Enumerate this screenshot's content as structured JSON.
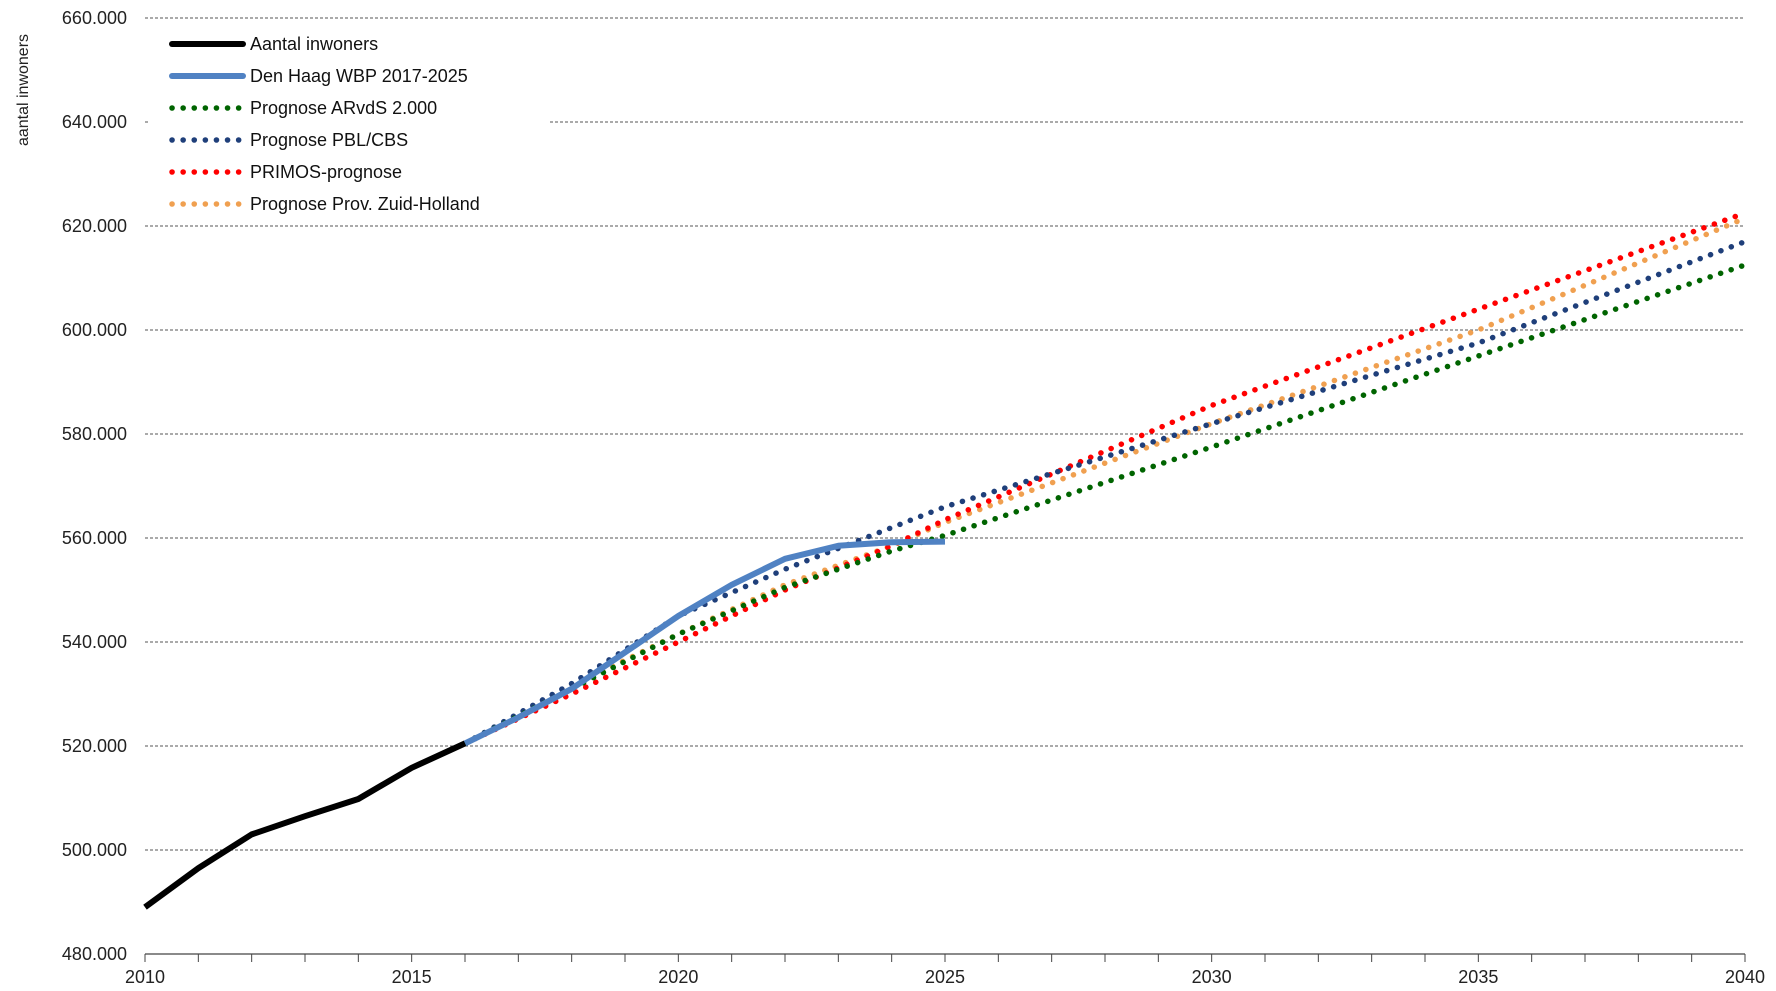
{
  "chart_data": {
    "type": "line",
    "title": "",
    "xlabel": "",
    "ylabel": "aantal inwoners",
    "xlim": [
      2010,
      2040
    ],
    "ylim": [
      480000,
      660000
    ],
    "x_ticks": [
      "2010",
      "2015",
      "2020",
      "2025",
      "2030",
      "2035",
      "2040"
    ],
    "y_ticks": [
      "480.000",
      "500.000",
      "520.000",
      "540.000",
      "560.000",
      "580.000",
      "600.000",
      "620.000",
      "640.000",
      "660.000"
    ],
    "grid": "horizontal dashed",
    "legend_position": "top-left",
    "series": [
      {
        "name": "Aantal inwoners",
        "style": "solid",
        "color": "#000000",
        "x": [
          2010,
          2011,
          2012,
          2013,
          2014,
          2015,
          2016
        ],
        "y": [
          489000,
          496500,
          503000,
          506500,
          509800,
          515800,
          520500
        ]
      },
      {
        "name": "Den Haag WBP 2017-2025",
        "style": "solid",
        "color": "#5082c3",
        "x": [
          2016,
          2017,
          2018,
          2019,
          2020,
          2021,
          2022,
          2023,
          2024,
          2025
        ],
        "y": [
          520500,
          525500,
          531000,
          538000,
          545000,
          551000,
          556000,
          558500,
          559200,
          559300
        ]
      },
      {
        "name": "Prognose ARvdS 2.000",
        "style": "dotted",
        "color": "#006400",
        "x": [
          2016,
          2018,
          2020,
          2022,
          2024,
          2025,
          2030,
          2035,
          2040
        ],
        "y": [
          520500,
          531000,
          541500,
          550500,
          557500,
          560500,
          577500,
          595000,
          612500
        ]
      },
      {
        "name": "Prognose PBL/CBS",
        "style": "dotted",
        "color": "#1f3f7a",
        "x": [
          2016,
          2018,
          2020,
          2022,
          2024,
          2025,
          2030,
          2035,
          2040
        ],
        "y": [
          520500,
          532000,
          545000,
          554000,
          562000,
          566000,
          582000,
          597500,
          617000
        ]
      },
      {
        "name": "PRIMOS-prognose",
        "style": "dotted",
        "color": "#ff0000",
        "x": [
          2016,
          2018,
          2020,
          2022,
          2024,
          2025,
          2030,
          2035,
          2040
        ],
        "y": [
          520500,
          530000,
          540000,
          550000,
          558500,
          563500,
          585500,
          604000,
          622500
        ]
      },
      {
        "name": "Prognose Prov. Zuid-Holland",
        "style": "dotted",
        "color": "#f0a050",
        "x": [
          2016,
          2018,
          2020,
          2022,
          2024,
          2025,
          2030,
          2035,
          2040
        ],
        "y": [
          520500,
          531500,
          541500,
          551000,
          558500,
          563000,
          582000,
          600000,
          621500
        ]
      }
    ]
  }
}
